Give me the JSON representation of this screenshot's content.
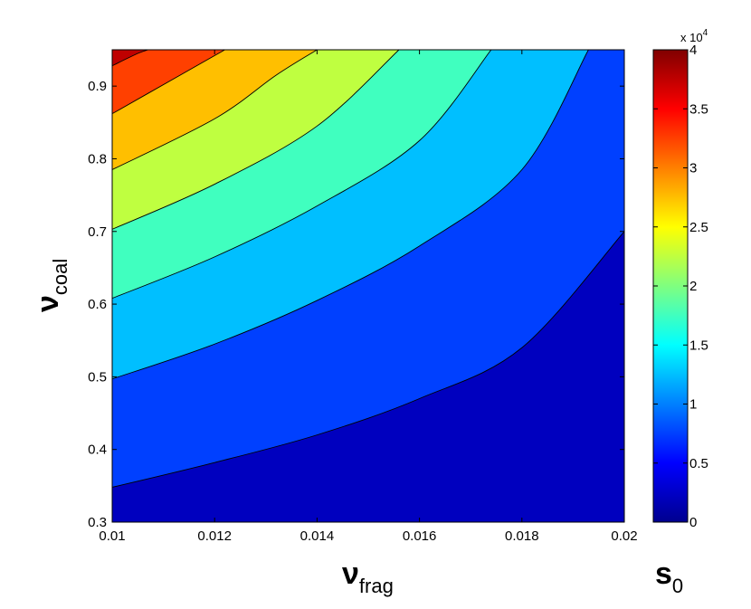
{
  "chart_data": {
    "type": "contourf",
    "xlabel": "ν",
    "xlabel_sub": "frag",
    "ylabel": "ν",
    "ylabel_sub": "coal",
    "xlim": [
      0.01,
      0.02
    ],
    "ylim": [
      0.3,
      0.95
    ],
    "x_ticks": [
      "0.01",
      "0.012",
      "0.014",
      "0.016",
      "0.018",
      "0.02"
    ],
    "y_ticks": [
      "0.3",
      "0.4",
      "0.5",
      "0.6",
      "0.7",
      "0.8",
      "0.9"
    ],
    "colorbar": {
      "label": "s",
      "label_sub": "0",
      "exponent_prefix": "x 10",
      "exponent": "4",
      "range": [
        0,
        4
      ],
      "ticks": [
        "0",
        "0.5",
        "1",
        "1.5",
        "2",
        "2.5",
        "3",
        "3.5",
        "4"
      ],
      "colormap": "jet"
    },
    "levels": [
      0,
      0.5,
      1,
      1.5,
      2,
      2.5,
      3,
      3.5,
      4
    ],
    "contour_lines": [
      {
        "level": 0.5,
        "points": [
          [
            0.01,
            0.348
          ],
          [
            0.012,
            0.382
          ],
          [
            0.014,
            0.42
          ],
          [
            0.016,
            0.47
          ],
          [
            0.018,
            0.54
          ],
          [
            0.02,
            0.7
          ]
        ]
      },
      {
        "level": 1.0,
        "points": [
          [
            0.01,
            0.497
          ],
          [
            0.012,
            0.545
          ],
          [
            0.014,
            0.605
          ],
          [
            0.016,
            0.68
          ],
          [
            0.018,
            0.785
          ],
          [
            0.0193,
            0.95
          ]
        ]
      },
      {
        "level": 1.5,
        "points": [
          [
            0.01,
            0.608
          ],
          [
            0.012,
            0.665
          ],
          [
            0.014,
            0.735
          ],
          [
            0.016,
            0.825
          ],
          [
            0.0174,
            0.95
          ]
        ]
      },
      {
        "level": 2.0,
        "points": [
          [
            0.01,
            0.703
          ],
          [
            0.012,
            0.765
          ],
          [
            0.014,
            0.845
          ],
          [
            0.0156,
            0.95
          ]
        ]
      },
      {
        "level": 2.5,
        "points": [
          [
            0.01,
            0.785
          ],
          [
            0.012,
            0.855
          ],
          [
            0.0132,
            0.915
          ],
          [
            0.014,
            0.95
          ]
        ]
      },
      {
        "level": 3.0,
        "points": [
          [
            0.01,
            0.862
          ],
          [
            0.0112,
            0.91
          ],
          [
            0.0122,
            0.95
          ]
        ]
      },
      {
        "level": 3.5,
        "points": [
          [
            0.01,
            0.928
          ],
          [
            0.0105,
            0.945
          ],
          [
            0.0107,
            0.95
          ]
        ]
      }
    ]
  }
}
